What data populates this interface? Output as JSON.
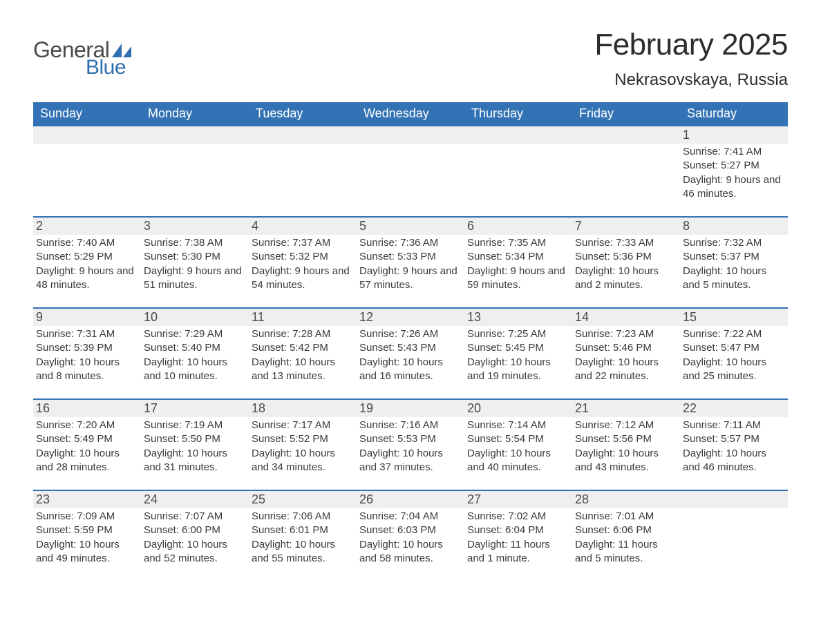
{
  "brand": {
    "word1": "General",
    "word2": "Blue",
    "text_color": "#4a4a4a",
    "accent_color": "#2f6fb0"
  },
  "title": "February 2025",
  "location": "Nekrasovskaya, Russia",
  "colors": {
    "header_bg": "#3373b5",
    "header_text": "#ffffff",
    "daynum_bg": "#efefef",
    "daynum_border": "#3373b5",
    "body_text": "#3a3a3a",
    "page_bg": "#ffffff"
  },
  "fonts": {
    "title_size_pt": 33,
    "location_size_pt": 18,
    "header_size_pt": 13,
    "daynum_size_pt": 13,
    "detail_size_pt": 11
  },
  "day_headers": [
    "Sunday",
    "Monday",
    "Tuesday",
    "Wednesday",
    "Thursday",
    "Friday",
    "Saturday"
  ],
  "weeks": [
    {
      "nums": [
        "",
        "",
        "",
        "",
        "",
        "",
        "1"
      ],
      "details": [
        null,
        null,
        null,
        null,
        null,
        null,
        {
          "sunrise": "7:41 AM",
          "sunset": "5:27 PM",
          "daylight": "9 hours and 46 minutes."
        }
      ]
    },
    {
      "nums": [
        "2",
        "3",
        "4",
        "5",
        "6",
        "7",
        "8"
      ],
      "details": [
        {
          "sunrise": "7:40 AM",
          "sunset": "5:29 PM",
          "daylight": "9 hours and 48 minutes."
        },
        {
          "sunrise": "7:38 AM",
          "sunset": "5:30 PM",
          "daylight": "9 hours and 51 minutes."
        },
        {
          "sunrise": "7:37 AM",
          "sunset": "5:32 PM",
          "daylight": "9 hours and 54 minutes."
        },
        {
          "sunrise": "7:36 AM",
          "sunset": "5:33 PM",
          "daylight": "9 hours and 57 minutes."
        },
        {
          "sunrise": "7:35 AM",
          "sunset": "5:34 PM",
          "daylight": "9 hours and 59 minutes."
        },
        {
          "sunrise": "7:33 AM",
          "sunset": "5:36 PM",
          "daylight": "10 hours and 2 minutes."
        },
        {
          "sunrise": "7:32 AM",
          "sunset": "5:37 PM",
          "daylight": "10 hours and 5 minutes."
        }
      ]
    },
    {
      "nums": [
        "9",
        "10",
        "11",
        "12",
        "13",
        "14",
        "15"
      ],
      "details": [
        {
          "sunrise": "7:31 AM",
          "sunset": "5:39 PM",
          "daylight": "10 hours and 8 minutes."
        },
        {
          "sunrise": "7:29 AM",
          "sunset": "5:40 PM",
          "daylight": "10 hours and 10 minutes."
        },
        {
          "sunrise": "7:28 AM",
          "sunset": "5:42 PM",
          "daylight": "10 hours and 13 minutes."
        },
        {
          "sunrise": "7:26 AM",
          "sunset": "5:43 PM",
          "daylight": "10 hours and 16 minutes."
        },
        {
          "sunrise": "7:25 AM",
          "sunset": "5:45 PM",
          "daylight": "10 hours and 19 minutes."
        },
        {
          "sunrise": "7:23 AM",
          "sunset": "5:46 PM",
          "daylight": "10 hours and 22 minutes."
        },
        {
          "sunrise": "7:22 AM",
          "sunset": "5:47 PM",
          "daylight": "10 hours and 25 minutes."
        }
      ]
    },
    {
      "nums": [
        "16",
        "17",
        "18",
        "19",
        "20",
        "21",
        "22"
      ],
      "details": [
        {
          "sunrise": "7:20 AM",
          "sunset": "5:49 PM",
          "daylight": "10 hours and 28 minutes."
        },
        {
          "sunrise": "7:19 AM",
          "sunset": "5:50 PM",
          "daylight": "10 hours and 31 minutes."
        },
        {
          "sunrise": "7:17 AM",
          "sunset": "5:52 PM",
          "daylight": "10 hours and 34 minutes."
        },
        {
          "sunrise": "7:16 AM",
          "sunset": "5:53 PM",
          "daylight": "10 hours and 37 minutes."
        },
        {
          "sunrise": "7:14 AM",
          "sunset": "5:54 PM",
          "daylight": "10 hours and 40 minutes."
        },
        {
          "sunrise": "7:12 AM",
          "sunset": "5:56 PM",
          "daylight": "10 hours and 43 minutes."
        },
        {
          "sunrise": "7:11 AM",
          "sunset": "5:57 PM",
          "daylight": "10 hours and 46 minutes."
        }
      ]
    },
    {
      "nums": [
        "23",
        "24",
        "25",
        "26",
        "27",
        "28",
        ""
      ],
      "details": [
        {
          "sunrise": "7:09 AM",
          "sunset": "5:59 PM",
          "daylight": "10 hours and 49 minutes."
        },
        {
          "sunrise": "7:07 AM",
          "sunset": "6:00 PM",
          "daylight": "10 hours and 52 minutes."
        },
        {
          "sunrise": "7:06 AM",
          "sunset": "6:01 PM",
          "daylight": "10 hours and 55 minutes."
        },
        {
          "sunrise": "7:04 AM",
          "sunset": "6:03 PM",
          "daylight": "10 hours and 58 minutes."
        },
        {
          "sunrise": "7:02 AM",
          "sunset": "6:04 PM",
          "daylight": "11 hours and 1 minute."
        },
        {
          "sunrise": "7:01 AM",
          "sunset": "6:06 PM",
          "daylight": "11 hours and 5 minutes."
        },
        null
      ]
    }
  ],
  "labels": {
    "sunrise": "Sunrise:",
    "sunset": "Sunset:",
    "daylight": "Daylight:"
  }
}
